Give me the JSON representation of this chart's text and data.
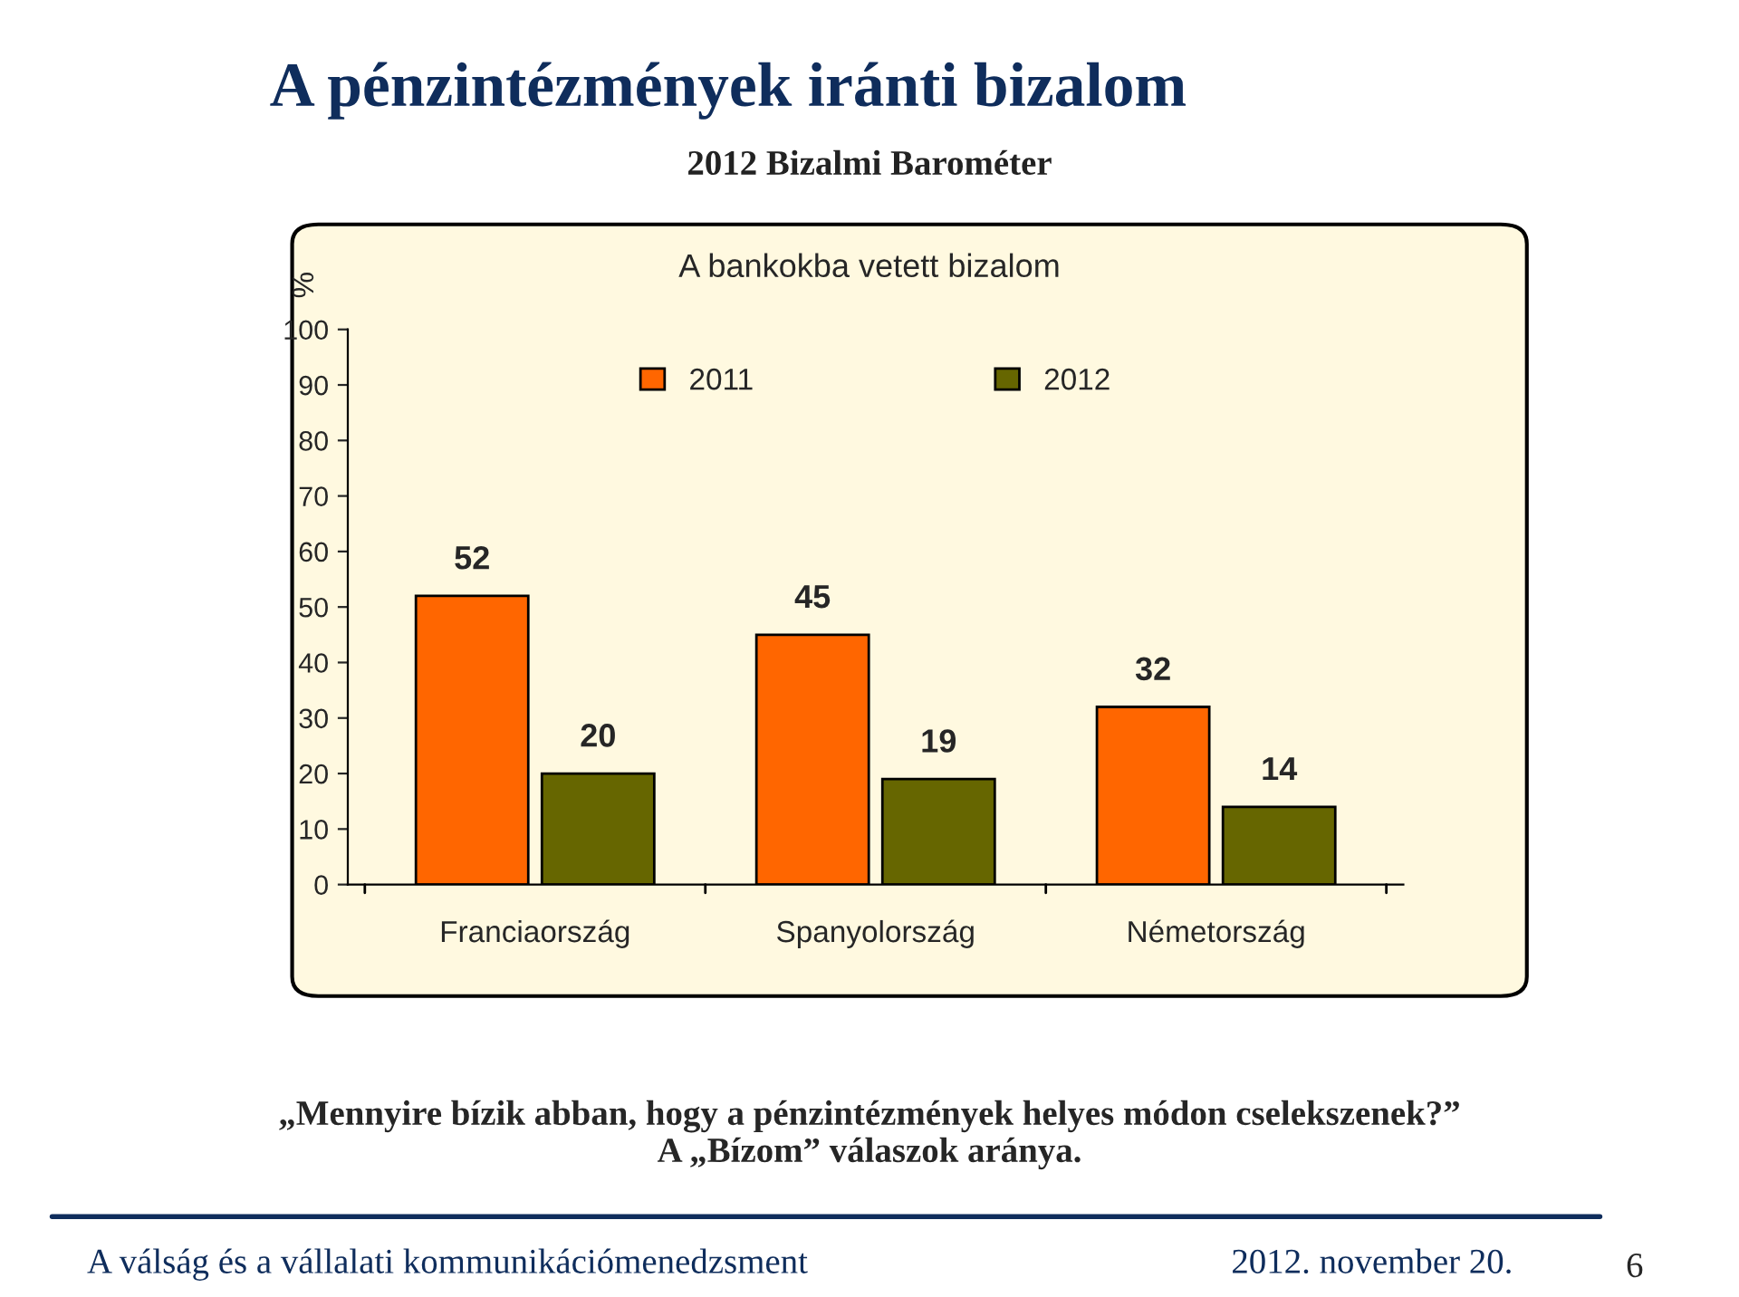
{
  "chart_data": {
    "type": "bar",
    "title": "A pénzintézmények iránti bizalom",
    "subtitle": "2012 Bizalmi Barométer",
    "ylabel": "%",
    "annotations": [
      "A bankokba vetett bizalom",
      "„Mennyire bízik abban, hogy a pénzintézmények helyes módon cselekszenek?”\nA „Bízom” válaszok aránya.",
      "A válság és a vállalati kommunikációmenedzsment",
      "2012. november 20.",
      "6"
    ],
    "categories": [
      "Franciaország",
      "Spanyolország",
      "Németország"
    ],
    "series": [
      {
        "name": "2011",
        "color": "#ff6600",
        "values": [
          52,
          45,
          32
        ]
      },
      {
        "name": "2012",
        "color": "#666600",
        "values": [
          20,
          19,
          14
        ]
      }
    ],
    "ylim": [
      0,
      100
    ],
    "yticks": [
      0,
      10,
      20,
      30,
      40,
      50,
      60,
      70,
      80,
      90,
      100
    ],
    "data_labels": true,
    "legend": "top",
    "grid": false
  }
}
